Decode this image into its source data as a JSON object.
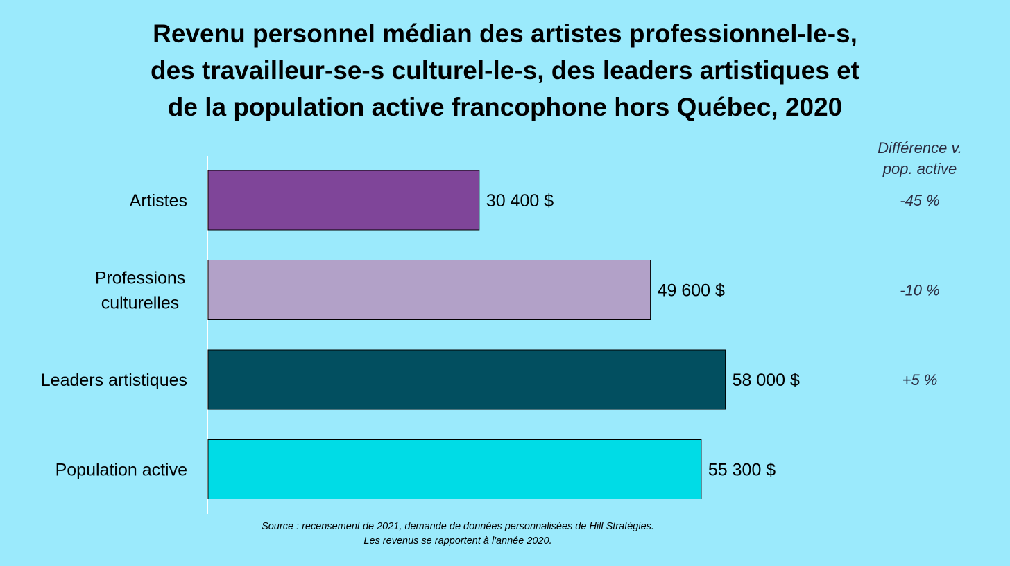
{
  "chart_data": {
    "type": "bar",
    "orientation": "horizontal",
    "title_lines": [
      "Revenu personnel médian des artistes professionnel-le-s,",
      "des travailleur-se-s culturel-le-s, des leaders artistiques et",
      "de la population active francophone hors Québec, 2020"
    ],
    "categories": [
      {
        "label_lines": [
          "Artistes"
        ]
      },
      {
        "label_lines": [
          "Professions",
          "culturelles"
        ]
      },
      {
        "label_lines": [
          "Leaders artistiques"
        ]
      },
      {
        "label_lines": [
          "Population active"
        ]
      }
    ],
    "values": [
      30400,
      49600,
      58000,
      55300
    ],
    "value_labels": [
      "30 400 $",
      "49 600 $",
      "58 000 $",
      "55 300 $"
    ],
    "bar_colors": [
      "#7f4599",
      "#b2a1c8",
      "#024f60",
      "#00dce6"
    ],
    "difference_header": [
      "Différence v.",
      "pop. active"
    ],
    "differences": [
      "-45 %",
      "-10 %",
      "+5 %",
      ""
    ],
    "xlim": [
      0,
      100000
    ],
    "grid": false,
    "legend": "none",
    "source_lines": [
      "Source : recensement de 2021, demande de données personnalisées de Hill Stratégies.",
      "Les revenus se rapportent à l'année 2020."
    ]
  }
}
